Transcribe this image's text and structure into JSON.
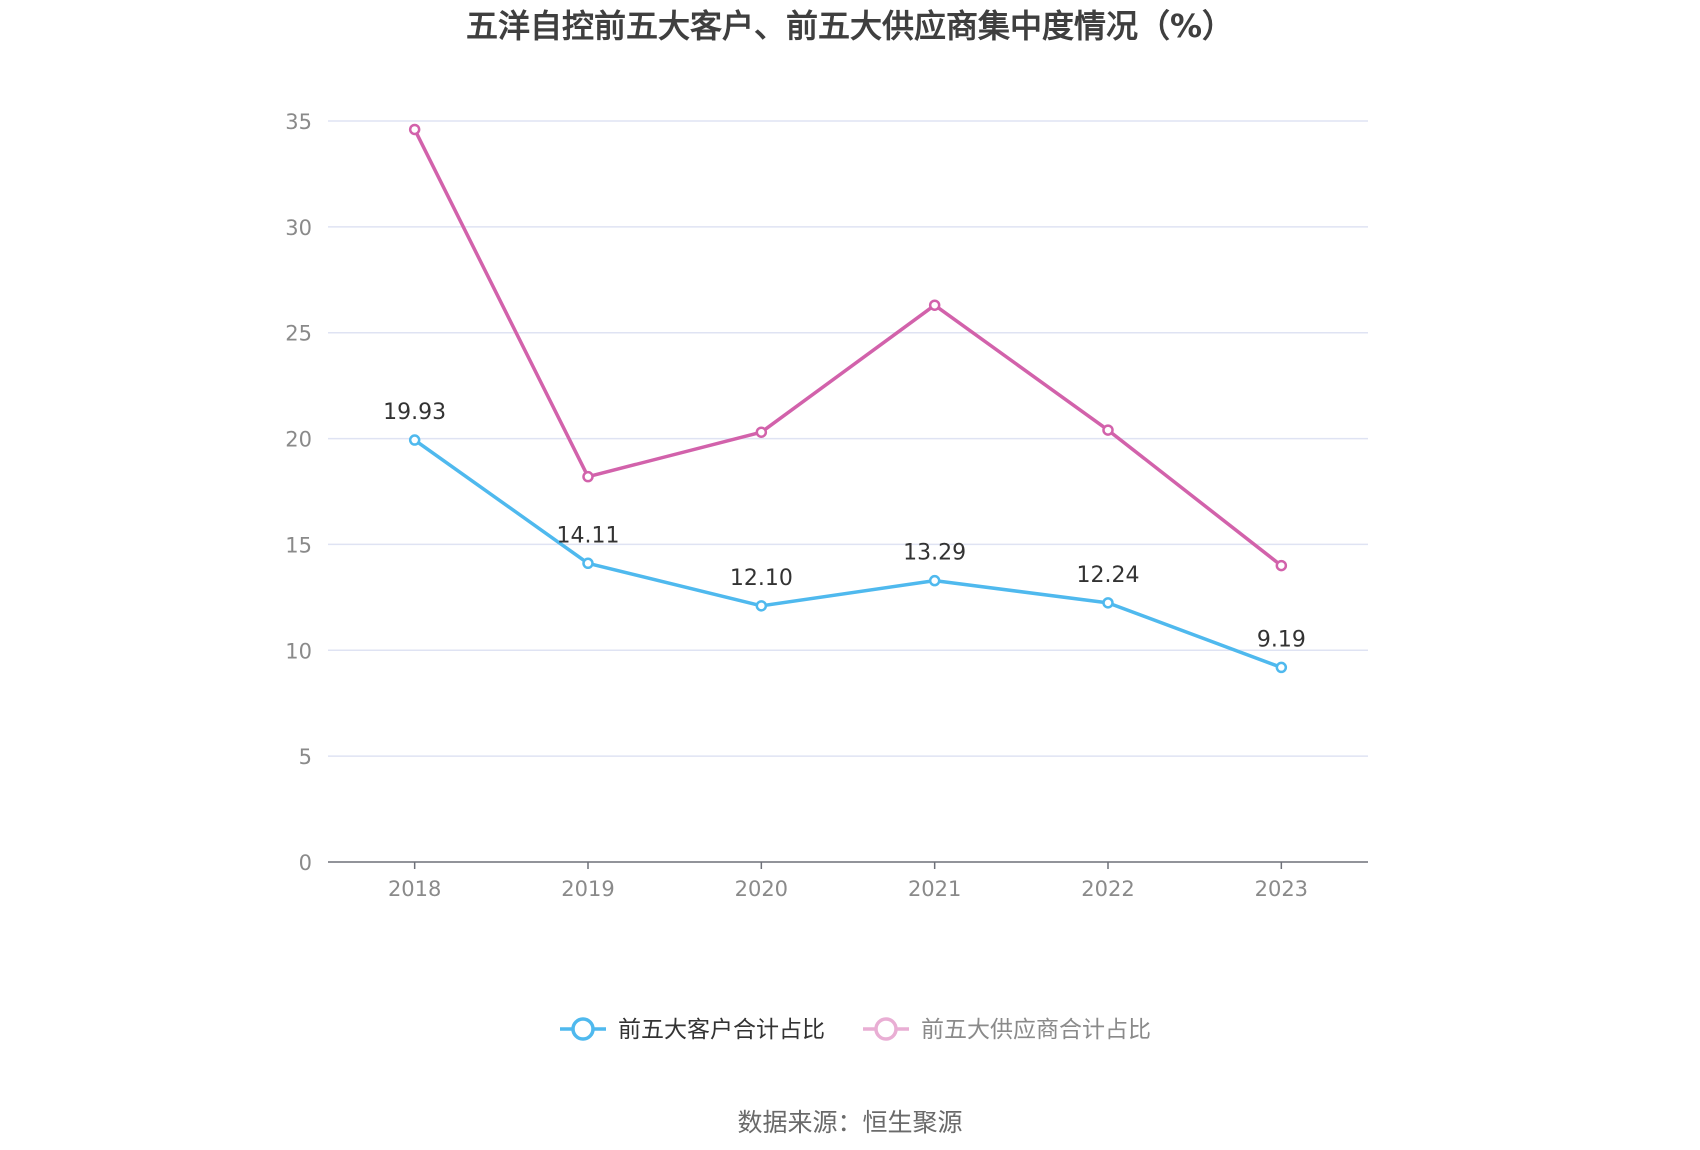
{
  "chart_data": {
    "type": "line",
    "title": "五洋自控前五大客户、前五大供应商集中度情况（%）",
    "categories": [
      "2018",
      "2019",
      "2020",
      "2021",
      "2022",
      "2023"
    ],
    "ylim": [
      0,
      35
    ],
    "yticks": [
      0,
      5,
      10,
      15,
      20,
      25,
      30,
      35
    ],
    "grid": true,
    "legend_position": "bottom",
    "series": [
      {
        "name": "前五大客户合计占比",
        "color": "#4fb9ee",
        "values": [
          19.93,
          14.11,
          12.1,
          13.29,
          12.24,
          9.19
        ],
        "labels": [
          "19.93",
          "14.11",
          "12.10",
          "13.29",
          "12.24",
          "9.19"
        ]
      },
      {
        "name": "前五大供应商合计占比",
        "color": "#d262ab",
        "values": [
          34.6,
          18.2,
          20.3,
          26.3,
          20.4,
          14.0
        ]
      }
    ]
  },
  "source": "数据来源：恒生聚源"
}
